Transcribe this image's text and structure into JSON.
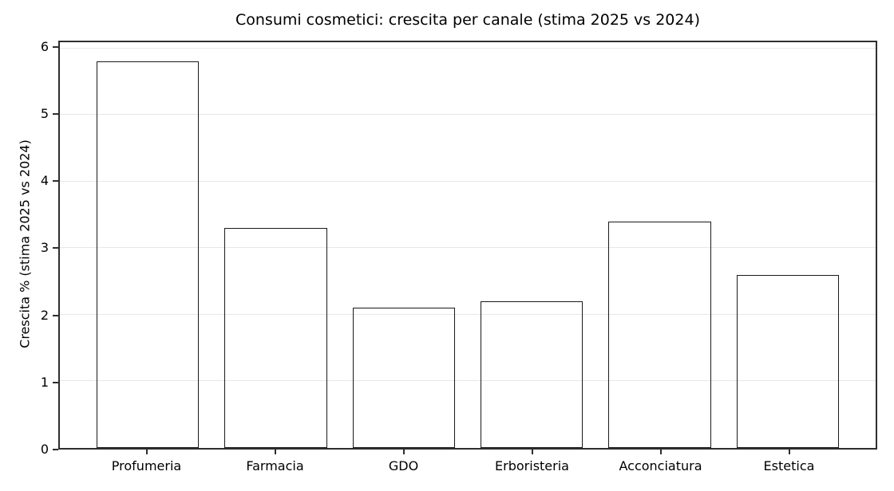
{
  "chart_data": {
    "type": "bar",
    "title": "Consumi cosmetici: crescita per canale (stima 2025 vs 2024)",
    "categories": [
      "Profumeria",
      "Farmacia",
      "GDO",
      "Erboristeria",
      "Acconciatura",
      "Estetica"
    ],
    "values": [
      5.8,
      3.3,
      2.1,
      2.2,
      3.4,
      2.6
    ],
    "xlabel": "",
    "ylabel": "Crescita % (stima 2025 vs 2024)",
    "ylim": [
      0,
      6.09
    ],
    "yticks": [
      0,
      1,
      2,
      3,
      4,
      5,
      6
    ],
    "grid": "horizontal-only",
    "legend_position": "none",
    "colors": {
      "bar_fill": "#FFA500",
      "bar_fill_alpha": 0.78,
      "bar_edge": "#1a1a1a",
      "spine": "#2e2e2e",
      "gridline": "#e7e7e7",
      "text": "#000000",
      "background": "#ffffff"
    }
  }
}
